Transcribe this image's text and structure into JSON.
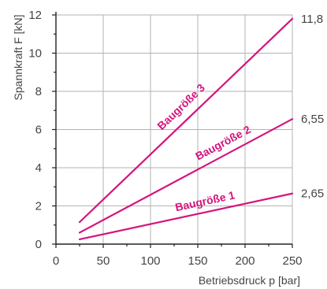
{
  "chart_data": {
    "type": "line",
    "title": "",
    "xlabel": "Betriebsdruck p [bar]",
    "ylabel": "Spannkraft F [kN]",
    "xlim": [
      0,
      250
    ],
    "ylim": [
      0,
      12
    ],
    "x_ticks": [
      "0",
      "50",
      "100",
      "150",
      "200",
      "250"
    ],
    "y_ticks": [
      "0",
      "2",
      "4",
      "6",
      "8",
      "10",
      "12"
    ],
    "grid": true,
    "colors": {
      "series": "#d4147d",
      "grid": "#b3b3b3",
      "axis": "#222222",
      "text": "#444444"
    },
    "series": [
      {
        "name": "Baugröße 1",
        "x": [
          25,
          250
        ],
        "y": [
          0.25,
          2.65
        ],
        "end_label": "2,65"
      },
      {
        "name": "Baugröße 2",
        "x": [
          25,
          250
        ],
        "y": [
          0.6,
          6.55
        ],
        "end_label": "6,55"
      },
      {
        "name": "Baugröße 3",
        "x": [
          25,
          250
        ],
        "y": [
          1.15,
          11.8
        ],
        "end_label": "11,8"
      }
    ]
  }
}
